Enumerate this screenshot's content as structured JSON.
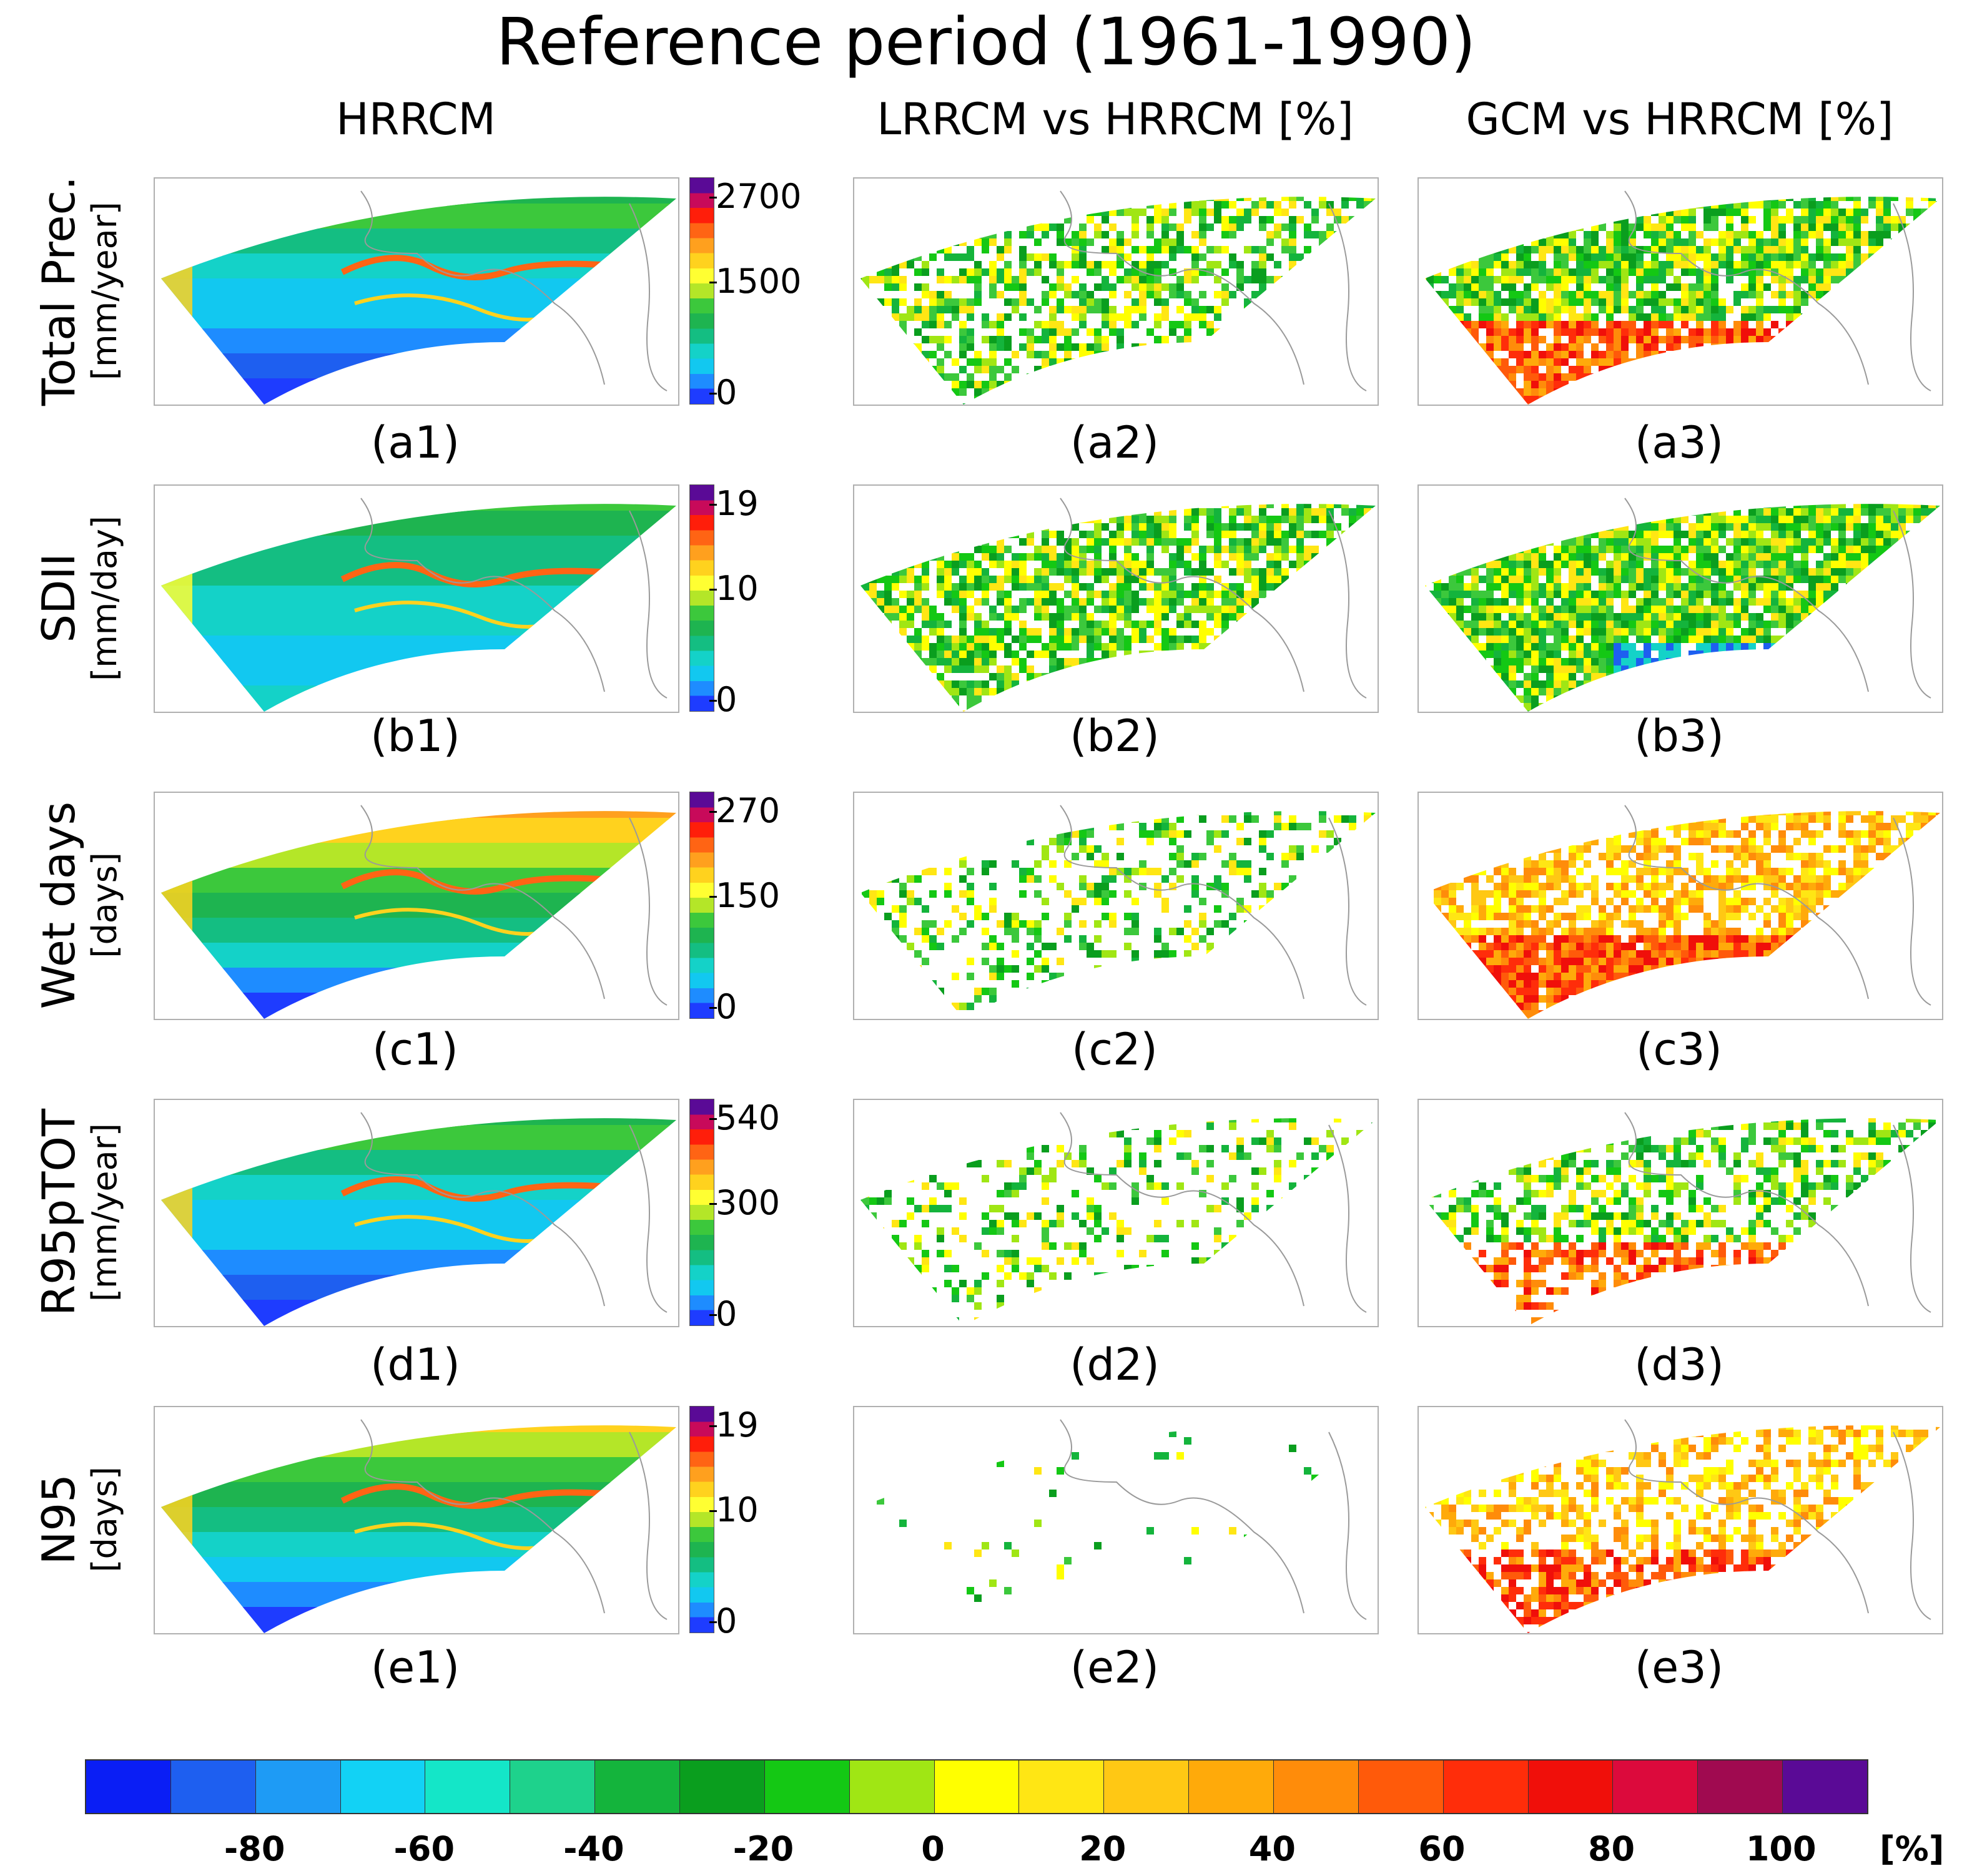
{
  "title": "Reference period (1961-1990)",
  "columns": [
    "HRRCM",
    "LRRCM vs HRRCM [%]",
    "GCM vs HRRCM [%]"
  ],
  "rows": [
    {
      "name": "Total Prec.",
      "unit": "[mm/year]",
      "ticks": [
        "2700",
        "1500",
        "0"
      ],
      "labels": [
        "(a1)",
        "(a2)",
        "(a3)"
      ]
    },
    {
      "name": "SDII",
      "unit": "[mm/day]",
      "ticks": [
        "19",
        "10",
        "0"
      ],
      "labels": [
        "(b1)",
        "(b2)",
        "(b3)"
      ]
    },
    {
      "name": "Wet days",
      "unit": "[days]",
      "ticks": [
        "270",
        "150",
        "0"
      ],
      "labels": [
        "(c1)",
        "(c2)",
        "(c3)"
      ]
    },
    {
      "name": "R95pTOT",
      "unit": "[mm/year]",
      "ticks": [
        "540",
        "300",
        "0"
      ],
      "labels": [
        "(d1)",
        "(d2)",
        "(d3)"
      ]
    },
    {
      "name": "N95",
      "unit": "[days]",
      "ticks": [
        "19",
        "10",
        "0"
      ],
      "labels": [
        "(e1)",
        "(e2)",
        "(e3)"
      ]
    }
  ],
  "percent_colorbar": {
    "ticks": [
      "-80",
      "-60",
      "-40",
      "-20",
      "0",
      "20",
      "40",
      "60",
      "80",
      "100"
    ],
    "unit": "[%]",
    "colors": [
      "#0a1ef5",
      "#1e5ff0",
      "#1e9bf5",
      "#12d2f5",
      "#14e6c8",
      "#1ed28c",
      "#14b43c",
      "#0a9e1e",
      "#14c814",
      "#a0e614",
      "#ffff00",
      "#ffe614",
      "#ffc814",
      "#ffaa0a",
      "#ff8c0a",
      "#ff5a0a",
      "#ff2d0a",
      "#f00f0a",
      "#dc0a3c",
      "#a00a50",
      "#5a0a96"
    ]
  },
  "abs_colorbar": {
    "colors": [
      "#5a0a96",
      "#c80a5a",
      "#ff1e0a",
      "#ff6414",
      "#ffa01e",
      "#ffd21e",
      "#ffff32",
      "#b4e628",
      "#3cc83c",
      "#1eb450",
      "#14be82",
      "#14d2c8",
      "#12c8f0",
      "#1e8cff",
      "#1e3cff"
    ]
  }
}
